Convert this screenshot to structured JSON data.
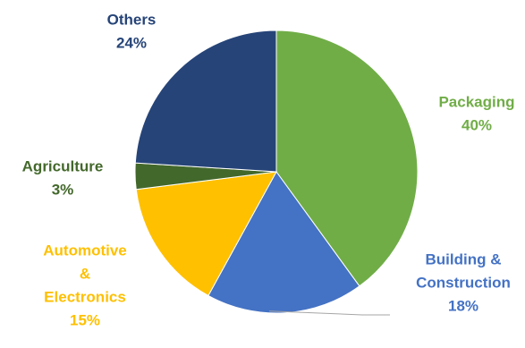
{
  "chart_data": {
    "type": "pie",
    "title": "",
    "slices": [
      {
        "name": "Packaging",
        "label_lines": [
          "Packaging"
        ],
        "value": 40,
        "value_label": "40%",
        "color": "#70ad47"
      },
      {
        "name": "Building & Construction",
        "label_lines": [
          "Building &",
          "Construction"
        ],
        "value": 18,
        "value_label": "18%",
        "color": "#4472c4"
      },
      {
        "name": "Automotive & Electronics",
        "label_lines": [
          "Automotive",
          "&",
          "Electronics"
        ],
        "value": 15,
        "value_label": "15%",
        "color": "#ffc000"
      },
      {
        "name": "Agriculture",
        "label_lines": [
          "Agriculture"
        ],
        "value": 3,
        "value_label": "3%",
        "color": "#43682b"
      },
      {
        "name": "Others",
        "label_lines": [
          "Others"
        ],
        "value": 24,
        "value_label": "24%",
        "color": "#264478"
      }
    ],
    "start_angle": "12 o'clock, clockwise",
    "legend": "none",
    "data_labels": "outside, colored to match slice"
  }
}
